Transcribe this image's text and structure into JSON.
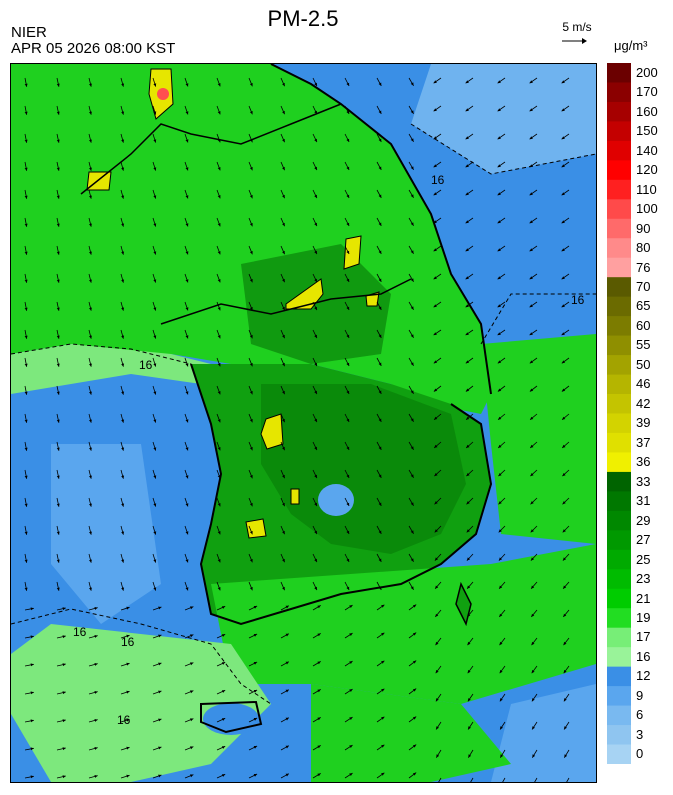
{
  "header": {
    "title": "PM-2.5",
    "agency": "NIER",
    "datetime": "APR 05 2026 08:00 KST",
    "wind_reference": "5 m/s",
    "unit": "μg/m³"
  },
  "map": {
    "contour_labels": [
      "16",
      "16",
      "16",
      "16",
      "16",
      "16"
    ],
    "field_colors": {
      "sea_clean": "#3a8fe6",
      "sea_light": "#5aa6ee",
      "land_mid": "#1fd01f",
      "land_dark": "#10a010",
      "land_darkest": "#0a8a0a",
      "light_green": "#7de87d",
      "hotspot_yellow": "#e6e600",
      "hotspot_red": "#ff4f4f"
    }
  },
  "legend": {
    "levels": [
      {
        "label": "200",
        "color": "#6b0000"
      },
      {
        "label": "170",
        "color": "#8b0000"
      },
      {
        "label": "160",
        "color": "#a60000"
      },
      {
        "label": "150",
        "color": "#c40000"
      },
      {
        "label": "140",
        "color": "#e00000"
      },
      {
        "label": "120",
        "color": "#ff0000"
      },
      {
        "label": "110",
        "color": "#ff2020"
      },
      {
        "label": "100",
        "color": "#ff4a4a"
      },
      {
        "label": "90",
        "color": "#ff6a6a"
      },
      {
        "label": "80",
        "color": "#ff8a8a"
      },
      {
        "label": "76",
        "color": "#ffa0a0"
      },
      {
        "label": "70",
        "color": "#5a5a00"
      },
      {
        "label": "65",
        "color": "#6b6b00"
      },
      {
        "label": "60",
        "color": "#7c7c00"
      },
      {
        "label": "55",
        "color": "#8f8f00"
      },
      {
        "label": "50",
        "color": "#a3a300"
      },
      {
        "label": "46",
        "color": "#b5b500"
      },
      {
        "label": "42",
        "color": "#c4c400"
      },
      {
        "label": "39",
        "color": "#d3d300"
      },
      {
        "label": "37",
        "color": "#e0e000"
      },
      {
        "label": "36",
        "color": "#f0f000"
      },
      {
        "label": "33",
        "color": "#006400"
      },
      {
        "label": "31",
        "color": "#007800"
      },
      {
        "label": "29",
        "color": "#008800"
      },
      {
        "label": "27",
        "color": "#009900"
      },
      {
        "label": "25",
        "color": "#00aa00"
      },
      {
        "label": "23",
        "color": "#00bb00"
      },
      {
        "label": "21",
        "color": "#00cc00"
      },
      {
        "label": "19",
        "color": "#22dd22"
      },
      {
        "label": "17",
        "color": "#77ee77"
      },
      {
        "label": "16",
        "color": "#99f399"
      },
      {
        "label": "12",
        "color": "#3a8fe6"
      },
      {
        "label": "9",
        "color": "#5aa6ee"
      },
      {
        "label": "6",
        "color": "#79b9f0"
      },
      {
        "label": "3",
        "color": "#8fc5f0"
      },
      {
        "label": "0",
        "color": "#a7d3f3"
      }
    ]
  }
}
